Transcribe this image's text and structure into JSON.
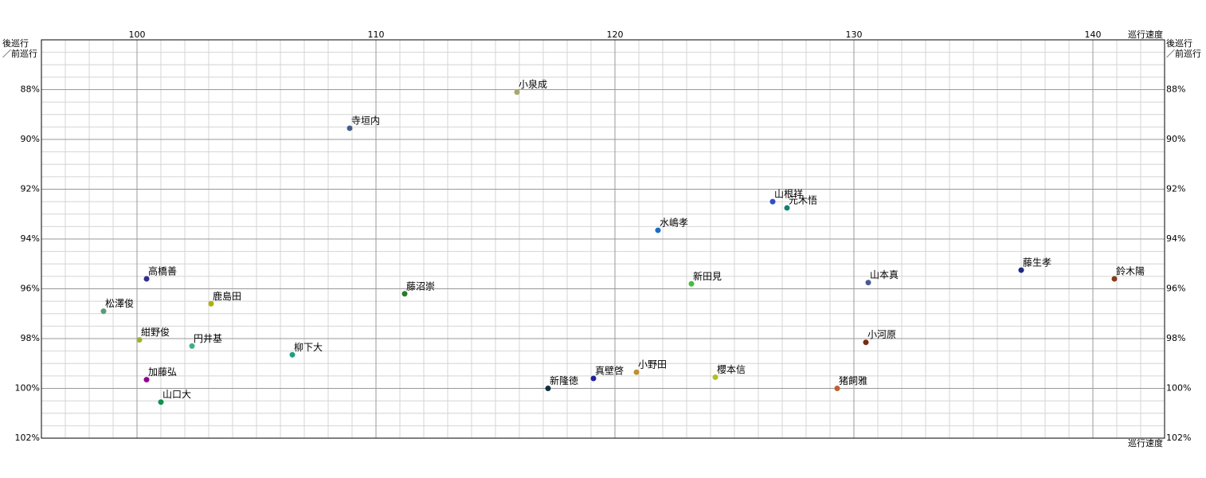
{
  "chart_data": {
    "type": "scatter",
    "xlabel": "巡行速度",
    "ylabel": [
      "後巡行",
      "／前巡行"
    ],
    "xlim": [
      96,
      143
    ],
    "ylim": [
      86,
      102
    ],
    "y_inverted": true,
    "xticks": [
      100,
      110,
      120,
      130,
      140
    ],
    "yticks": [
      {
        "value": 88,
        "label": "88%"
      },
      {
        "value": 90,
        "label": "90%"
      },
      {
        "value": 92,
        "label": "92%"
      },
      {
        "value": 94,
        "label": "94%"
      },
      {
        "value": 96,
        "label": "96%"
      },
      {
        "value": 98,
        "label": "98%"
      },
      {
        "value": 100,
        "label": "100%"
      },
      {
        "value": 102,
        "label": "102%"
      }
    ],
    "grid": true,
    "x_minor_step": 1,
    "y_minor_step": 0.5,
    "points": [
      {
        "name": "小泉成",
        "x": 115.9,
        "y": 88.1,
        "color": "#a9a96a"
      },
      {
        "name": "寺垣内",
        "x": 108.9,
        "y": 89.55,
        "color": "#3f5f8a"
      },
      {
        "name": "山根祥",
        "x": 126.6,
        "y": 92.5,
        "color": "#3050c0"
      },
      {
        "name": "元木悟",
        "x": 127.2,
        "y": 92.75,
        "color": "#108070"
      },
      {
        "name": "水嶋孝",
        "x": 121.8,
        "y": 93.65,
        "color": "#1a6ec0"
      },
      {
        "name": "藤生孝",
        "x": 137.0,
        "y": 95.25,
        "color": "#1a2a80"
      },
      {
        "name": "鈴木陽",
        "x": 140.9,
        "y": 95.6,
        "color": "#8a3a1a"
      },
      {
        "name": "山本真",
        "x": 130.6,
        "y": 95.75,
        "color": "#4a5a90"
      },
      {
        "name": "新田見",
        "x": 123.2,
        "y": 95.8,
        "color": "#40c040"
      },
      {
        "name": "高橋善",
        "x": 100.4,
        "y": 95.6,
        "color": "#303090"
      },
      {
        "name": "藤沼崇",
        "x": 111.2,
        "y": 96.2,
        "color": "#2a7a2a"
      },
      {
        "name": "鹿島田",
        "x": 103.1,
        "y": 96.6,
        "color": "#b0b010"
      },
      {
        "name": "松澤俊",
        "x": 98.6,
        "y": 96.9,
        "color": "#5a9a7a"
      },
      {
        "name": "紺野俊",
        "x": 100.1,
        "y": 98.05,
        "color": "#a0b030"
      },
      {
        "name": "円井基",
        "x": 102.3,
        "y": 98.3,
        "color": "#40b080"
      },
      {
        "name": "小河原",
        "x": 130.5,
        "y": 98.15,
        "color": "#7a2a10"
      },
      {
        "name": "柳下大",
        "x": 106.5,
        "y": 98.65,
        "color": "#20a080"
      },
      {
        "name": "小野田",
        "x": 120.9,
        "y": 99.35,
        "color": "#c09030"
      },
      {
        "name": "真壁啓",
        "x": 119.1,
        "y": 99.6,
        "color": "#2020a0"
      },
      {
        "name": "櫻本信",
        "x": 124.2,
        "y": 99.55,
        "color": "#b0c020"
      },
      {
        "name": "加藤弘",
        "x": 100.4,
        "y": 99.65,
        "color": "#900090"
      },
      {
        "name": "新隆徳",
        "x": 117.2,
        "y": 100.0,
        "color": "#103040"
      },
      {
        "name": "猪飼雅",
        "x": 129.3,
        "y": 100.0,
        "color": "#c06030"
      },
      {
        "name": "山口大",
        "x": 101.0,
        "y": 100.55,
        "color": "#109050"
      }
    ]
  }
}
